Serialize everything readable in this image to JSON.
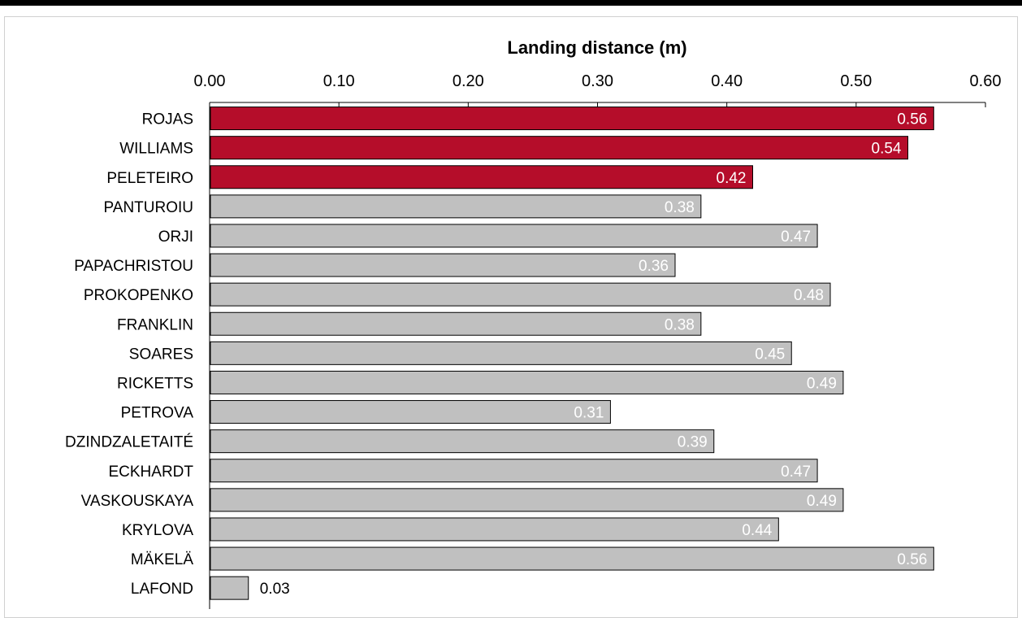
{
  "chart_data": {
    "type": "bar",
    "orientation": "horizontal",
    "title": "Landing distance (m)",
    "xlabel": "",
    "ylabel": "",
    "xlim": [
      0,
      0.6
    ],
    "xticks": [
      "0.00",
      "0.10",
      "0.20",
      "0.30",
      "0.40",
      "0.50",
      "0.60"
    ],
    "axis_position": "top",
    "grid": false,
    "categories": [
      "ROJAS",
      "WILLIAMS",
      "PELETEIRO",
      "PANTUROIU",
      "ORJI",
      "PAPACHRISTOU",
      "PROKOPENKO",
      "FRANKLIN",
      "SOARES",
      "RICKETTS",
      "PETROVA",
      "DZINDZALETAITÉ",
      "ECKHARDT",
      "VASKOUSKAYA",
      "KRYLOVA",
      "MÄKELÄ",
      "LAFOND"
    ],
    "values": [
      0.56,
      0.54,
      0.42,
      0.38,
      0.47,
      0.36,
      0.48,
      0.38,
      0.45,
      0.49,
      0.31,
      0.39,
      0.47,
      0.49,
      0.44,
      0.56,
      0.03
    ],
    "value_labels": [
      "0.56",
      "0.54",
      "0.42",
      "0.38",
      "0.47",
      "0.36",
      "0.48",
      "0.38",
      "0.45",
      "0.49",
      "0.31",
      "0.39",
      "0.47",
      "0.49",
      "0.44",
      "0.56",
      "0.03"
    ],
    "highlighted": [
      true,
      true,
      true,
      false,
      false,
      false,
      false,
      false,
      false,
      false,
      false,
      false,
      false,
      false,
      false,
      false,
      false
    ],
    "colors": {
      "highlight": "#b50d2a",
      "default": "#c0c0c0",
      "bar_border": "#000000",
      "label_inside": "#ffffff",
      "label_outside": "#000000"
    }
  }
}
